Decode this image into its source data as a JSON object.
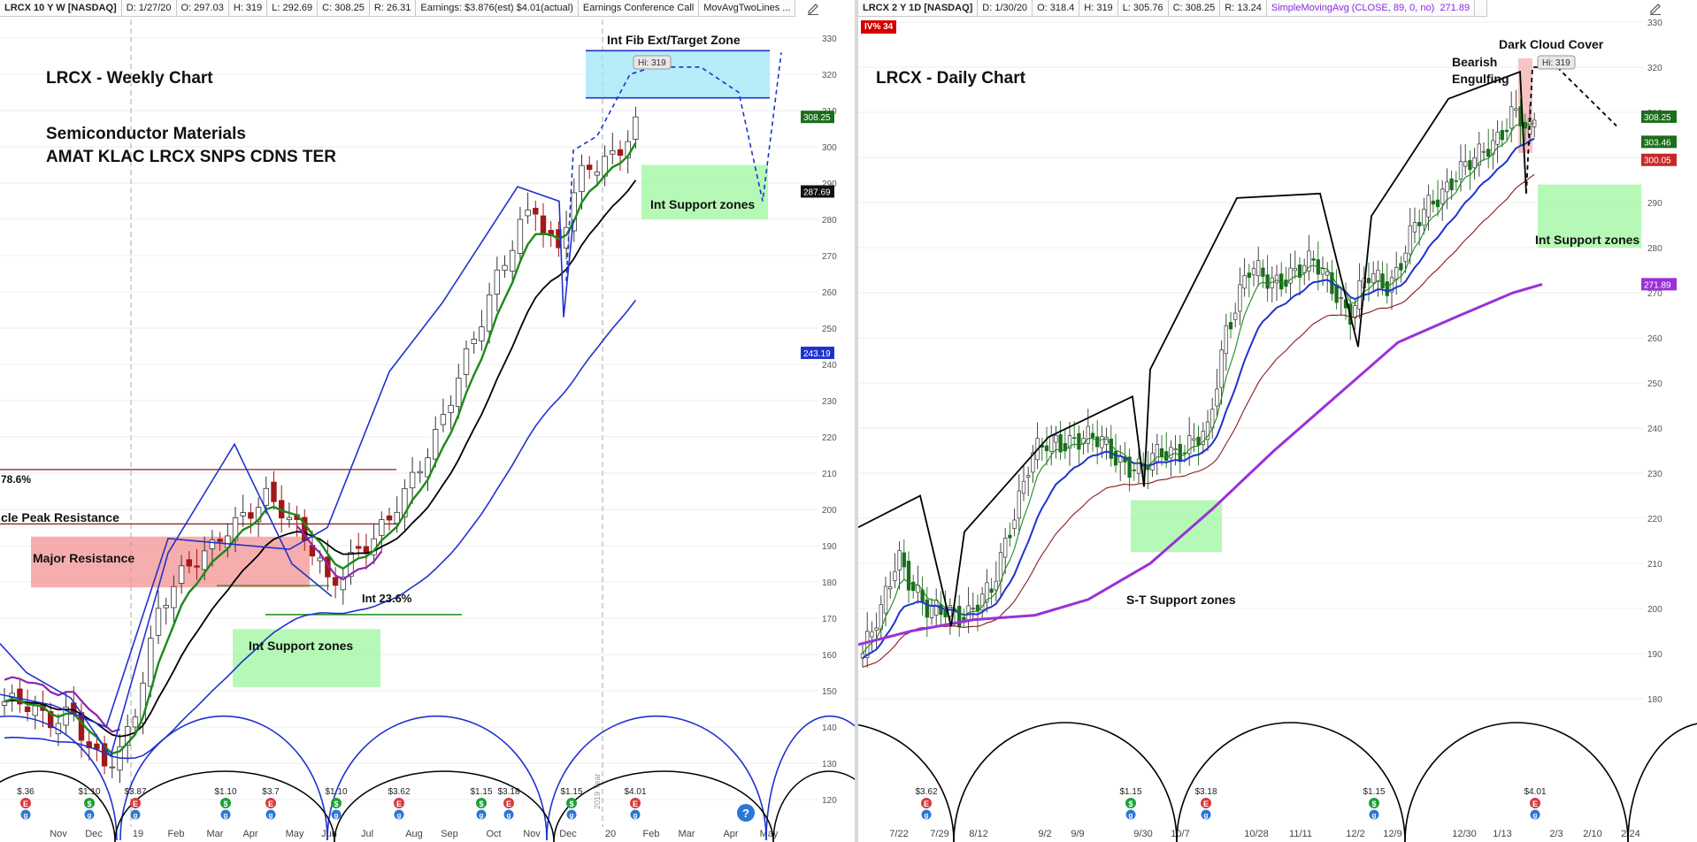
{
  "left": {
    "header": {
      "symbol": "LRCX 10 Y W [NASDAQ]",
      "date": "D: 1/27/20",
      "open": "O: 297.03",
      "high": "H: 319",
      "low": "L: 292.69",
      "close": "C: 308.25",
      "range": "R: 26.31",
      "earnings": "Earnings: $3.876(est) $4.01(actual)",
      "event": "Earnings Conference Call",
      "study": "MovAvgTwoLines ..."
    },
    "annotations": {
      "title": "LRCX - Weekly Chart",
      "sector": "Semiconductor Materials",
      "peers": "AMAT KLAC LRCX SNPS CDNS TER",
      "fib_zone": "Int Fib Ext/Target Zone",
      "hi": "Hi: 319",
      "support_right": "Int Support zones",
      "support_left": "Int Support zones",
      "major_resistance": "Major Resistance",
      "cycle_peak": "cle Peak Resistance",
      "fib786": "78.6%",
      "fib236": "Int 23.6%",
      "year_mark": "2019 Year"
    },
    "price_tags": [
      "308.25",
      "287.69",
      "243.19"
    ],
    "dividends": [
      {
        "label": "$.36",
        "month": "Oct"
      },
      {
        "label": "$1.10",
        "month": "Dec"
      },
      {
        "label": "$3.87",
        "month": "Jan"
      },
      {
        "label": "$1.10",
        "month": "Mar"
      },
      {
        "label": "$3.7",
        "month": "Apr"
      },
      {
        "label": "$1.10",
        "month": "Jun"
      },
      {
        "label": "$3.62",
        "month": "Jul"
      },
      {
        "label": "$1.15",
        "month": "Sep"
      },
      {
        "label": "$3.18",
        "month": "Oct"
      },
      {
        "label": "$1.15",
        "month": "Nov"
      },
      {
        "label": "$4.01",
        "month": "Jan"
      }
    ],
    "help_icon_text": "?",
    "colors": {
      "ma_fast": "#1a8a1a",
      "ma_slow": "#000000",
      "ma_long": "#1f33cc",
      "cycle": "#1f33cc",
      "bull": "#555555",
      "bear": "#a01818",
      "support": "#9ef59e",
      "target": "#9fe6f5",
      "resistance": "#f28a8a"
    }
  },
  "right": {
    "header": {
      "symbol": "LRCX 2 Y 1D [NASDAQ]",
      "date": "D: 1/30/20",
      "open": "O: 318.4",
      "high": "H: 319",
      "low": "L: 305.76",
      "close": "C: 308.25",
      "range": "R: 13.24",
      "study": "SimpleMovingAvg (CLOSE, 89, 0, no)",
      "study_value": "271.89"
    },
    "iv_badge": "IV% 34",
    "annotations": {
      "title": "LRCX - Daily Chart",
      "bearish": "Bearish",
      "engulfing": "Engulfing",
      "dark_cloud": "Dark Cloud Cover",
      "hi": "Hi: 319",
      "support_right": "Int Support zones",
      "support_st": "S-T Support zones"
    },
    "price_tags": [
      "308.25",
      "303.46",
      "300.05",
      "271.89"
    ],
    "dividends": [
      {
        "label": "$3.62",
        "month": "Jul"
      },
      {
        "label": "$1.15",
        "month": "Sep"
      },
      {
        "label": "$3.18",
        "month": "Oct"
      },
      {
        "label": "$1.15",
        "month": "Dec"
      },
      {
        "label": "$4.01",
        "month": "Jan"
      }
    ],
    "colors": {
      "ema_fast": "#1a8a1a",
      "ema_mid": "#1f33cc",
      "ema_slow": "#8b1a1a",
      "sma89": "#9b30d9",
      "cycle": "#000000",
      "support": "#9ef59e",
      "resistance": "#f5b5b5"
    }
  },
  "chart_data": [
    {
      "type": "candlestick",
      "title": "LRCX - Weekly Chart",
      "ylim": [
        115,
        335
      ],
      "y_ticks": [
        120,
        130,
        140,
        150,
        160,
        170,
        180,
        190,
        200,
        210,
        220,
        230,
        240,
        250,
        260,
        270,
        280,
        290,
        300,
        310,
        320,
        330
      ],
      "x_ticks": [
        "Nov",
        "Dec",
        "19",
        "Feb",
        "Mar",
        "Apr",
        "May",
        "Jun",
        "Jul",
        "Aug",
        "Sep",
        "Oct",
        "Nov",
        "Dec",
        "20",
        "Feb",
        "Mar",
        "Apr",
        "May"
      ],
      "zones": [
        {
          "name": "Int Fib Ext/Target Zone",
          "y": [
            313.5,
            326.5
          ]
        },
        {
          "name": "Int Support zones (upper)",
          "y": [
            280,
            295
          ]
        },
        {
          "name": "Major Resistance",
          "y": [
            178.5,
            192.5
          ]
        },
        {
          "name": "Int Support zones (lower)",
          "y": [
            151,
            167
          ]
        }
      ],
      "levels": [
        {
          "name": "78.6%",
          "y": 211
        },
        {
          "name": "cle Peak Resistance",
          "y": 196
        },
        {
          "name": "Int 23.6%",
          "y": 171
        }
      ],
      "last": {
        "open": 297.03,
        "high": 319,
        "low": 292.69,
        "close": 308.25
      },
      "indicator_values": [
        308.25,
        287.69,
        243.19
      ]
    },
    {
      "type": "candlestick",
      "title": "LRCX - Daily Chart",
      "ylim": [
        176,
        331
      ],
      "y_ticks": [
        180,
        190,
        200,
        210,
        220,
        230,
        240,
        250,
        260,
        270,
        280,
        290,
        300,
        310,
        320,
        330
      ],
      "x_ticks": [
        "7/22",
        "7/29",
        "8/12",
        "9/2",
        "9/9",
        "9/30",
        "10/7",
        "10/28",
        "11/11",
        "12/2",
        "12/9",
        "12/30",
        "1/13",
        "2/3",
        "2/10",
        "2/24"
      ],
      "zones": [
        {
          "name": "Int Support zones",
          "y": [
            280,
            294
          ]
        },
        {
          "name": "S-T Support zones",
          "y": [
            212.5,
            224
          ]
        }
      ],
      "series": [
        {
          "name": "SimpleMovingAvg (CLOSE, 89, 0, no)",
          "last": 271.89
        }
      ],
      "last": {
        "open": 318.4,
        "high": 319,
        "low": 305.76,
        "close": 308.25
      },
      "indicator_values": [
        308.25,
        303.46,
        300.05,
        271.89
      ]
    }
  ]
}
